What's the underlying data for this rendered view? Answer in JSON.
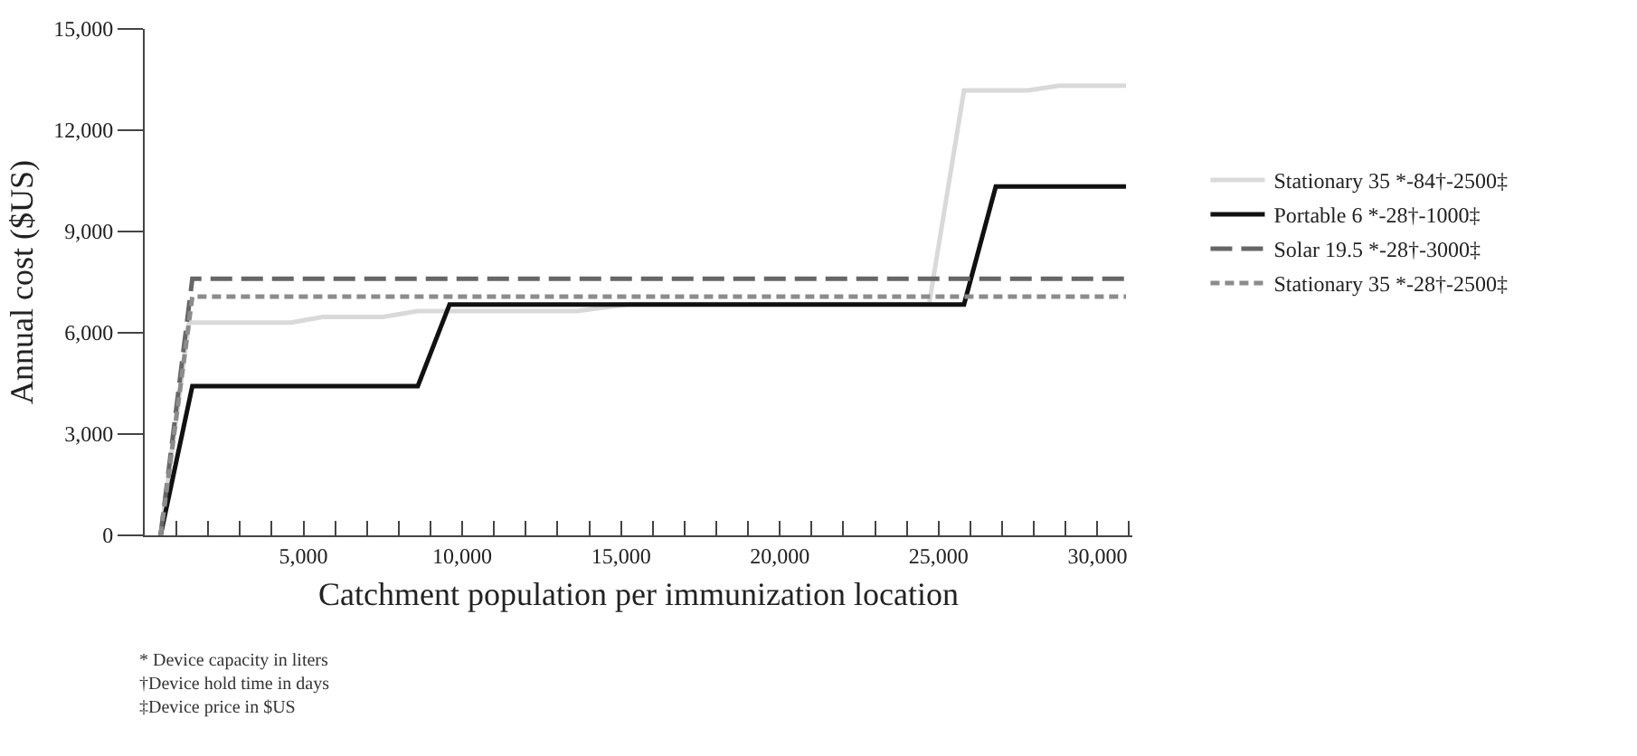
{
  "chart_data": {
    "type": "line",
    "xlabel": "Catchment population per immunization location",
    "ylabel": "Annual cost ($US)",
    "xlim": [
      0,
      31100
    ],
    "ylim": [
      0,
      15000
    ],
    "xticks": [
      {
        "value": 1000,
        "label": null
      },
      {
        "value": 2000,
        "label": null
      },
      {
        "value": 3000,
        "label": null
      },
      {
        "value": 4000,
        "label": null
      },
      {
        "value": 5000,
        "label": "5,000"
      },
      {
        "value": 6000,
        "label": null
      },
      {
        "value": 7000,
        "label": null
      },
      {
        "value": 8000,
        "label": null
      },
      {
        "value": 9000,
        "label": null
      },
      {
        "value": 10000,
        "label": "10,000"
      },
      {
        "value": 11000,
        "label": null
      },
      {
        "value": 12000,
        "label": null
      },
      {
        "value": 13000,
        "label": null
      },
      {
        "value": 14000,
        "label": null
      },
      {
        "value": 15000,
        "label": "15,000"
      },
      {
        "value": 16000,
        "label": null
      },
      {
        "value": 17000,
        "label": null
      },
      {
        "value": 18000,
        "label": null
      },
      {
        "value": 19000,
        "label": null
      },
      {
        "value": 20000,
        "label": "20,000"
      },
      {
        "value": 21000,
        "label": null
      },
      {
        "value": 22000,
        "label": null
      },
      {
        "value": 23000,
        "label": null
      },
      {
        "value": 24000,
        "label": null
      },
      {
        "value": 25000,
        "label": "25,000"
      },
      {
        "value": 26000,
        "label": null
      },
      {
        "value": 27000,
        "label": null
      },
      {
        "value": 28000,
        "label": null
      },
      {
        "value": 29000,
        "label": null
      },
      {
        "value": 30000,
        "label": "30,000"
      },
      {
        "value": 31000,
        "label": null
      }
    ],
    "yticks": [
      {
        "value": 0,
        "label": "0"
      },
      {
        "value": 3000,
        "label": "3,000"
      },
      {
        "value": 6000,
        "label": "6,000"
      },
      {
        "value": 9000,
        "label": "9,000"
      },
      {
        "value": 12000,
        "label": "12,000"
      },
      {
        "value": 15000,
        "label": "15,000"
      }
    ],
    "grid": false,
    "legend": "right",
    "series": [
      {
        "name": "Stationary 35 *-84†-2500‡",
        "color": "#d9d9d9",
        "line_style": "solid",
        "x": [
          500,
          1400,
          4600,
          5600,
          7500,
          8600,
          13600,
          15300,
          24700,
          25800,
          27800,
          28800,
          30900
        ],
        "values": [
          0,
          6300,
          6300,
          6470,
          6470,
          6640,
          6640,
          6850,
          6850,
          13180,
          13180,
          13320,
          13320
        ]
      },
      {
        "name": "Portable 6 *-28†-1000‡",
        "color": "#111111",
        "line_style": "solid",
        "x": [
          500,
          1500,
          8600,
          9600,
          25800,
          26800,
          30900
        ],
        "values": [
          0,
          4420,
          4420,
          6840,
          6840,
          10330,
          10330
        ]
      },
      {
        "name": "Solar 19.5 *-28†-3000‡",
        "color": "#666666",
        "line_style": "dashed",
        "x": [
          500,
          1500,
          30900
        ],
        "values": [
          0,
          7600,
          7600
        ]
      },
      {
        "name": "Stationary 35 *-28†-2500‡",
        "color": "#8c8c8c",
        "line_style": "dotted",
        "x": [
          500,
          1500,
          30900
        ],
        "values": [
          0,
          7070,
          7070
        ]
      }
    ],
    "annotations": [
      "* Device capacity in liters",
      "†Device hold time in days",
      "‡Device price in $US"
    ]
  }
}
